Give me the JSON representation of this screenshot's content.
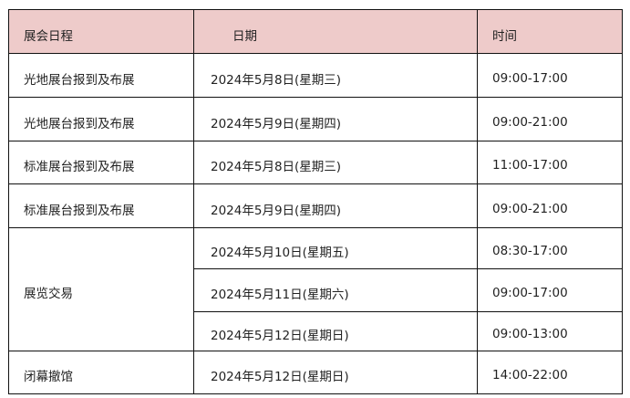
{
  "header": {
    "col1": "展会日程",
    "col2": "日期",
    "col3": "时间"
  },
  "rows": [
    {
      "event": "光地展台报到及布展",
      "date": "2024年5月8日(星期三)",
      "time": "09:00-17:00"
    },
    {
      "event": "光地展台报到及布展",
      "date": "2024年5月9日(星期四)",
      "time": "09:00-21:00"
    },
    {
      "event": "标准展台报到及布展",
      "date": "2024年5月8日(星期三)",
      "time": "11:00-17:00"
    },
    {
      "event": "标准展台报到及布展",
      "date": "2024年5月9日(星期四)",
      "time": "09:00-21:00"
    },
    {
      "event": "展览交易",
      "date": "2024年5月10日(星期五)",
      "time": "08:30-17:00"
    },
    {
      "date": "2024年5月11日(星期六)",
      "time": "09:00-17:00"
    },
    {
      "date": "2024年5月12日(星期日)",
      "time": "09:00-13:00"
    },
    {
      "event": "闭幕撤馆",
      "date": "2024年5月12日(星期日)",
      "time": "14:00-22:00"
    }
  ],
  "colors": {
    "header_bg": "#eecbca",
    "border": "#111111"
  }
}
